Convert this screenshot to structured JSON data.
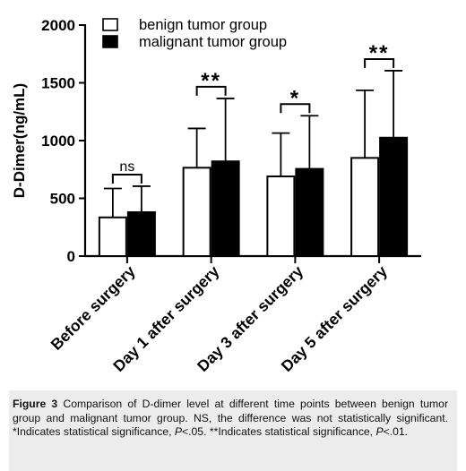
{
  "chart_data": {
    "type": "bar",
    "ylabel": "D-Dimer(ng/mL)",
    "xlabel": "",
    "ylim": [
      0,
      2000
    ],
    "yticks": [
      "0",
      "500",
      "1000",
      "1500",
      "2000"
    ],
    "categories": [
      "Before surgery",
      "Day 1 after surgery",
      "Day 3 after surgery",
      "Day 5 after surgery"
    ],
    "series": [
      {
        "name": "benign tumor group",
        "fill": "#ffffff",
        "values": [
          335,
          765,
          690,
          850
        ],
        "error_upper": [
          585,
          1105,
          1065,
          1435
        ]
      },
      {
        "name": "malignant tumor group",
        "fill": "#000000",
        "values": [
          380,
          820,
          755,
          1025
        ],
        "error_upper": [
          605,
          1365,
          1215,
          1605
        ]
      }
    ],
    "significance": [
      "ns",
      "**",
      "*",
      "**"
    ],
    "legend_position": "top-left",
    "grid": false
  },
  "caption": {
    "label": "Figure 3",
    "text1": " Comparison of D-dimer level at different time points between benign tumor group and malignant tumor group. NS, the difference was not statistically significant. *Indicates statistical significance, ",
    "p1": "P",
    "text2": "<.05. **Indicates statistical significance, ",
    "p2": "P",
    "text3": "<.01."
  }
}
